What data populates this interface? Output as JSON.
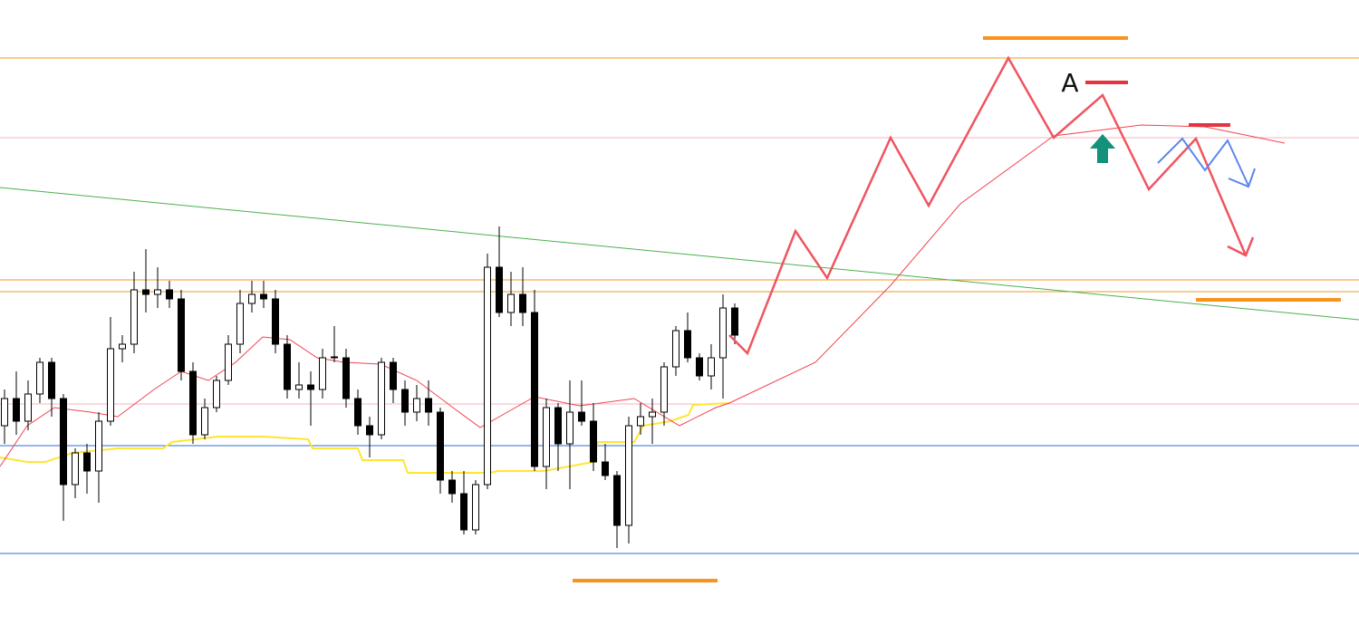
{
  "chart_data": {
    "type": "candlestick",
    "annotations": [
      "A"
    ],
    "ylim": [
      0,
      690
    ],
    "candles": [
      [
        220,
        260,
        200,
        250
      ],
      [
        250,
        280,
        210,
        225
      ],
      [
        225,
        270,
        215,
        255
      ],
      [
        255,
        295,
        245,
        290
      ],
      [
        290,
        295,
        230,
        250
      ],
      [
        250,
        255,
        115,
        155
      ],
      [
        155,
        195,
        140,
        190
      ],
      [
        190,
        200,
        145,
        170
      ],
      [
        170,
        235,
        135,
        225
      ],
      [
        225,
        340,
        220,
        305
      ],
      [
        305,
        320,
        290,
        310
      ],
      [
        310,
        390,
        300,
        370
      ],
      [
        370,
        415,
        345,
        365
      ],
      [
        365,
        395,
        350,
        370
      ],
      [
        370,
        380,
        350,
        360
      ],
      [
        360,
        370,
        270,
        280
      ],
      [
        280,
        290,
        200,
        210
      ],
      [
        210,
        250,
        205,
        240
      ],
      [
        240,
        275,
        235,
        270
      ],
      [
        270,
        320,
        265,
        310
      ],
      [
        310,
        370,
        300,
        355
      ],
      [
        355,
        380,
        345,
        365
      ],
      [
        365,
        380,
        350,
        360
      ],
      [
        360,
        370,
        300,
        310
      ],
      [
        310,
        320,
        250,
        260
      ],
      [
        260,
        290,
        250,
        265
      ],
      [
        265,
        280,
        220,
        260
      ],
      [
        260,
        305,
        250,
        295
      ],
      [
        295,
        330,
        290,
        296
      ],
      [
        295,
        305,
        240,
        250
      ],
      [
        250,
        260,
        210,
        220
      ],
      [
        220,
        230,
        185,
        210
      ],
      [
        210,
        295,
        205,
        290
      ],
      [
        290,
        295,
        245,
        260
      ],
      [
        260,
        270,
        220,
        235
      ],
      [
        235,
        265,
        225,
        250
      ],
      [
        250,
        270,
        220,
        235
      ],
      [
        235,
        240,
        145,
        160
      ],
      [
        160,
        170,
        135,
        145
      ],
      [
        145,
        170,
        100,
        105
      ],
      [
        105,
        160,
        100,
        155
      ],
      [
        155,
        410,
        150,
        395
      ],
      [
        395,
        440,
        340,
        345
      ],
      [
        345,
        390,
        330,
        365
      ],
      [
        365,
        395,
        330,
        345
      ],
      [
        345,
        370,
        170,
        175
      ],
      [
        175,
        250,
        150,
        240
      ],
      [
        240,
        245,
        170,
        200
      ],
      [
        200,
        270,
        150,
        235
      ],
      [
        235,
        270,
        220,
        225
      ],
      [
        225,
        245,
        170,
        180
      ],
      [
        180,
        200,
        160,
        165
      ],
      [
        165,
        170,
        85,
        110
      ],
      [
        110,
        230,
        90,
        220
      ],
      [
        220,
        245,
        210,
        230
      ],
      [
        230,
        250,
        200,
        235
      ],
      [
        235,
        290,
        220,
        285
      ],
      [
        285,
        330,
        275,
        325
      ],
      [
        325,
        345,
        290,
        295
      ],
      [
        295,
        300,
        270,
        275
      ],
      [
        275,
        310,
        260,
        295
      ],
      [
        295,
        365,
        250,
        350
      ],
      [
        350,
        355,
        310,
        320
      ]
    ]
  }
}
